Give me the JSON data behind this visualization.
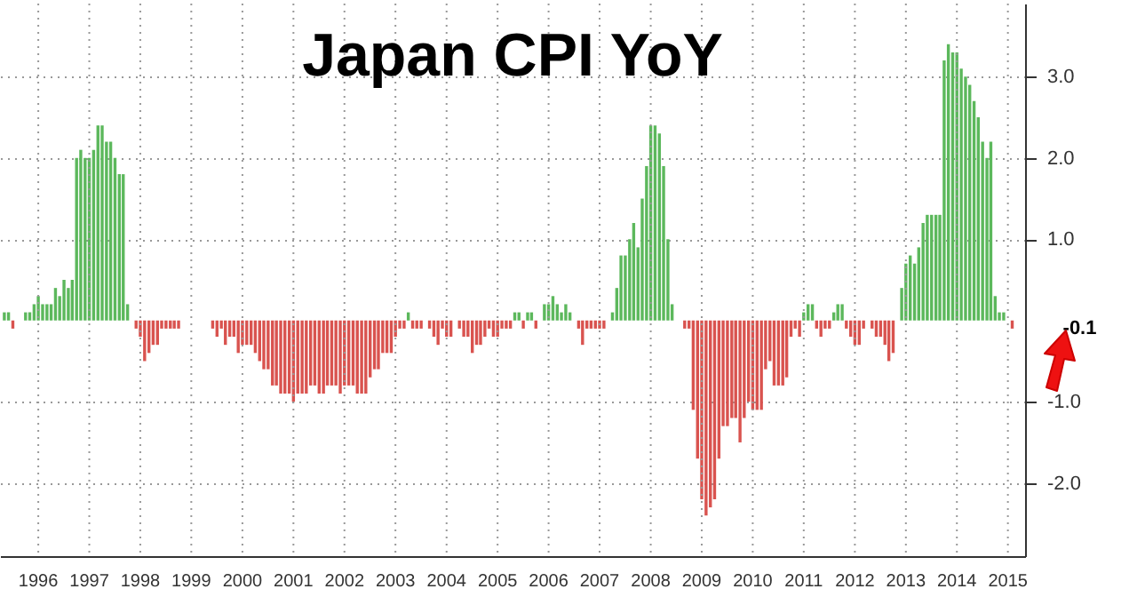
{
  "chart_data": {
    "type": "bar",
    "title": "Japan CPI YoY",
    "x": [
      "1995-11",
      "1995-12",
      "1996-01",
      "1996-02",
      "1996-03",
      "1996-04",
      "1996-05",
      "1996-06",
      "1996-07",
      "1996-08",
      "1996-09",
      "1996-10",
      "1996-11",
      "1996-12",
      "1997-01",
      "1997-02",
      "1997-03",
      "1997-04",
      "1997-05",
      "1997-06",
      "1997-07",
      "1997-08",
      "1997-09",
      "1997-10",
      "1997-11",
      "1997-12",
      "1998-01",
      "1998-02",
      "1998-03",
      "1998-04",
      "1998-05",
      "1998-06",
      "1998-07",
      "1998-08",
      "1998-09",
      "1998-10",
      "1998-11",
      "1998-12",
      "1999-01",
      "1999-02",
      "1999-03",
      "1999-04",
      "1999-05",
      "1999-06",
      "1999-07",
      "1999-08",
      "1999-09",
      "1999-10",
      "1999-11",
      "1999-12",
      "2000-01",
      "2000-02",
      "2000-03",
      "2000-04",
      "2000-05",
      "2000-06",
      "2000-07",
      "2000-08",
      "2000-09",
      "2000-10",
      "2000-11",
      "2000-12",
      "2001-01",
      "2001-02",
      "2001-03",
      "2001-04",
      "2001-05",
      "2001-06",
      "2001-07",
      "2001-08",
      "2001-09",
      "2001-10",
      "2001-11",
      "2001-12",
      "2002-01",
      "2002-02",
      "2002-03",
      "2002-04",
      "2002-05",
      "2002-06",
      "2002-07",
      "2002-08",
      "2002-09",
      "2002-10",
      "2002-11",
      "2002-12",
      "2003-01",
      "2003-02",
      "2003-03",
      "2003-04",
      "2003-05",
      "2003-06",
      "2003-07",
      "2003-08",
      "2003-09",
      "2003-10",
      "2003-11",
      "2003-12",
      "2004-01",
      "2004-02",
      "2004-03",
      "2004-04",
      "2004-05",
      "2004-06",
      "2004-07",
      "2004-08",
      "2004-09",
      "2004-10",
      "2004-11",
      "2004-12",
      "2005-01",
      "2005-02",
      "2005-03",
      "2005-04",
      "2005-05",
      "2005-06",
      "2005-07",
      "2005-08",
      "2005-09",
      "2005-10",
      "2005-11",
      "2005-12",
      "2006-01",
      "2006-02",
      "2006-03",
      "2006-04",
      "2006-05",
      "2006-06",
      "2006-07",
      "2006-08",
      "2006-09",
      "2006-10",
      "2006-11",
      "2006-12",
      "2007-01",
      "2007-02",
      "2007-03",
      "2007-04",
      "2007-05",
      "2007-06",
      "2007-07",
      "2007-08",
      "2007-09",
      "2007-10",
      "2007-11",
      "2007-12",
      "2008-01",
      "2008-02",
      "2008-03",
      "2008-04",
      "2008-05",
      "2008-06",
      "2008-07",
      "2008-08",
      "2008-09",
      "2008-10",
      "2008-11",
      "2008-12",
      "2009-01",
      "2009-02",
      "2009-03",
      "2009-04",
      "2009-05",
      "2009-06",
      "2009-07",
      "2009-08",
      "2009-09",
      "2009-10",
      "2009-11",
      "2009-12",
      "2010-01",
      "2010-02",
      "2010-03",
      "2010-04",
      "2010-05",
      "2010-06",
      "2010-07",
      "2010-08",
      "2010-09",
      "2010-10",
      "2010-11",
      "2010-12",
      "2011-01",
      "2011-02",
      "2011-03",
      "2011-04",
      "2011-05",
      "2011-06",
      "2011-07",
      "2011-08",
      "2011-09",
      "2011-10",
      "2011-11",
      "2011-12",
      "2012-01",
      "2012-02",
      "2012-03",
      "2012-04",
      "2012-05",
      "2012-06",
      "2012-07",
      "2012-08",
      "2012-09",
      "2012-10",
      "2012-11",
      "2012-12",
      "2013-01",
      "2013-02",
      "2013-03",
      "2013-04",
      "2013-05",
      "2013-06",
      "2013-07",
      "2013-08",
      "2013-09",
      "2013-10",
      "2013-11",
      "2013-12",
      "2014-01",
      "2014-02",
      "2014-03",
      "2014-04",
      "2014-05",
      "2014-06",
      "2014-07",
      "2014-08",
      "2014-09",
      "2014-10",
      "2014-11",
      "2014-12",
      "2015-01",
      "2015-02",
      "2015-03",
      "2015-04",
      "2015-05",
      "2015-06",
      "2015-07",
      "2015-08"
    ],
    "values": [
      0.1,
      0.1,
      -0.1,
      0,
      0,
      0.1,
      0.1,
      0.2,
      0.3,
      0.2,
      0.2,
      0.2,
      0.4,
      0.3,
      0.5,
      0.4,
      0.5,
      2.0,
      2.1,
      2.0,
      2.0,
      2.1,
      2.4,
      2.4,
      2.2,
      2.2,
      2.0,
      1.8,
      1.8,
      0.2,
      0,
      -0.1,
      -0.2,
      -0.5,
      -0.4,
      -0.3,
      -0.3,
      -0.1,
      -0.1,
      -0.1,
      -0.1,
      -0.1,
      0,
      0,
      0,
      0,
      0,
      0,
      0,
      -0.1,
      -0.2,
      -0.1,
      -0.3,
      -0.2,
      -0.2,
      -0.4,
      -0.3,
      -0.3,
      -0.3,
      -0.4,
      -0.5,
      -0.6,
      -0.6,
      -0.8,
      -0.8,
      -0.9,
      -0.9,
      -0.9,
      -1.0,
      -0.9,
      -0.9,
      -0.9,
      -0.8,
      -0.8,
      -0.9,
      -0.9,
      -0.8,
      -0.8,
      -0.8,
      -0.9,
      -0.8,
      -0.8,
      -0.8,
      -0.9,
      -0.9,
      -0.9,
      -0.7,
      -0.6,
      -0.6,
      -0.4,
      -0.4,
      -0.4,
      -0.2,
      -0.1,
      -0.1,
      0.1,
      -0.1,
      -0.1,
      -0.1,
      0,
      -0.1,
      -0.2,
      -0.3,
      -0.1,
      -0.2,
      -0.2,
      0,
      -0.1,
      -0.2,
      -0.2,
      -0.4,
      -0.3,
      -0.3,
      -0.2,
      -0.1,
      -0.2,
      -0.2,
      -0.1,
      -0.1,
      -0.1,
      0.1,
      0.1,
      -0.1,
      0.1,
      0.1,
      -0.1,
      0,
      0.2,
      0.2,
      0.3,
      0.2,
      0.1,
      0.2,
      0.1,
      0,
      -0.1,
      -0.3,
      -0.1,
      -0.1,
      -0.1,
      -0.1,
      -0.1,
      0,
      0.1,
      0.4,
      0.8,
      0.8,
      1.0,
      1.2,
      0.9,
      1.5,
      1.9,
      2.4,
      2.4,
      2.3,
      1.9,
      1.0,
      0.2,
      0,
      0,
      -0.1,
      -0.1,
      -1.1,
      -1.7,
      -2.2,
      -2.4,
      -2.3,
      -2.2,
      -1.7,
      -1.3,
      -1.3,
      -1.2,
      -1.2,
      -1.5,
      -1.2,
      -1.0,
      -1.1,
      -1.1,
      -1.1,
      -0.6,
      -0.5,
      -0.8,
      -0.8,
      -0.8,
      -0.7,
      -0.2,
      -0.1,
      -0.2,
      0.1,
      0.2,
      0.2,
      -0.1,
      -0.2,
      -0.1,
      -0.1,
      0.1,
      0.2,
      0.2,
      -0.1,
      -0.2,
      -0.3,
      -0.3,
      -0.1,
      0,
      -0.1,
      -0.2,
      -0.2,
      -0.3,
      -0.5,
      -0.4,
      0,
      0.4,
      0.7,
      0.8,
      0.7,
      0.9,
      1.2,
      1.3,
      1.3,
      1.3,
      1.3,
      3.2,
      3.4,
      3.3,
      3.3,
      3.1,
      3.0,
      2.9,
      2.7,
      2.5,
      2.2,
      2.0,
      2.2,
      0.3,
      0.1,
      0.1,
      0,
      -0.1
    ],
    "colors": [
      "#5cb85c",
      "#5cb85c",
      "#d9534f",
      "#5cb85c",
      "#5cb85c",
      "#5cb85c",
      "#5cb85c",
      "#5cb85c",
      "#5cb85c",
      "#5cb85c",
      "#5cb85c",
      "#5cb85c",
      "#5cb85c",
      "#5cb85c",
      "#5cb85c",
      "#5cb85c",
      "#5cb85c",
      "#5cb85c",
      "#5cb85c",
      "#5cb85c",
      "#5cb85c",
      "#5cb85c",
      "#5cb85c",
      "#5cb85c",
      "#5cb85c",
      "#5cb85c",
      "#5cb85c",
      "#5cb85c",
      "#5cb85c",
      "#5cb85c",
      "#5cb85c",
      "#d9534f",
      "#d9534f",
      "#d9534f",
      "#d9534f",
      "#d9534f",
      "#d9534f",
      "#d9534f",
      "#d9534f",
      "#d9534f",
      "#d9534f",
      "#d9534f",
      "#5cb85c",
      "#5cb85c",
      "#5cb85c",
      "#5cb85c",
      "#5cb85c",
      "#5cb85c",
      "#5cb85c",
      "#d9534f",
      "#d9534f",
      "#d9534f",
      "#d9534f",
      "#d9534f",
      "#d9534f",
      "#d9534f",
      "#d9534f",
      "#d9534f",
      "#d9534f",
      "#d9534f",
      "#d9534f",
      "#d9534f",
      "#d9534f",
      "#d9534f",
      "#d9534f",
      "#d9534f",
      "#d9534f",
      "#d9534f",
      "#d9534f",
      "#d9534f",
      "#d9534f",
      "#d9534f",
      "#d9534f",
      "#d9534f",
      "#d9534f",
      "#d9534f",
      "#d9534f",
      "#d9534f",
      "#d9534f",
      "#d9534f",
      "#d9534f",
      "#d9534f",
      "#d9534f",
      "#d9534f",
      "#d9534f",
      "#d9534f",
      "#d9534f",
      "#d9534f",
      "#d9534f",
      "#d9534f",
      "#d9534f",
      "#d9534f",
      "#d9534f",
      "#d9534f",
      "#d9534f",
      "#5cb85c",
      "#d9534f",
      "#d9534f",
      "#d9534f",
      "#5cb85c",
      "#d9534f",
      "#d9534f",
      "#d9534f",
      "#d9534f",
      "#d9534f",
      "#d9534f",
      "#5cb85c",
      "#d9534f",
      "#d9534f",
      "#d9534f",
      "#d9534f",
      "#d9534f",
      "#d9534f",
      "#d9534f",
      "#d9534f",
      "#d9534f",
      "#d9534f",
      "#d9534f",
      "#d9534f",
      "#d9534f",
      "#5cb85c",
      "#5cb85c",
      "#d9534f",
      "#5cb85c",
      "#5cb85c",
      "#d9534f",
      "#5cb85c",
      "#5cb85c",
      "#5cb85c",
      "#5cb85c",
      "#5cb85c",
      "#5cb85c",
      "#5cb85c",
      "#5cb85c",
      "#5cb85c",
      "#d9534f",
      "#d9534f",
      "#d9534f",
      "#d9534f",
      "#d9534f",
      "#d9534f",
      "#d9534f",
      "#5cb85c",
      "#5cb85c",
      "#5cb85c",
      "#5cb85c",
      "#5cb85c",
      "#5cb85c",
      "#5cb85c",
      "#5cb85c",
      "#5cb85c",
      "#5cb85c",
      "#5cb85c",
      "#5cb85c",
      "#5cb85c",
      "#5cb85c",
      "#5cb85c",
      "#5cb85c",
      "#5cb85c",
      "#5cb85c",
      "#d9534f",
      "#d9534f",
      "#d9534f",
      "#d9534f",
      "#d9534f",
      "#d9534f",
      "#d9534f",
      "#d9534f",
      "#d9534f",
      "#d9534f",
      "#d9534f",
      "#d9534f",
      "#d9534f",
      "#d9534f",
      "#d9534f",
      "#d9534f",
      "#d9534f",
      "#d9534f",
      "#d9534f",
      "#d9534f",
      "#d9534f",
      "#d9534f",
      "#d9534f",
      "#d9534f",
      "#d9534f",
      "#d9534f",
      "#d9534f",
      "#d9534f",
      "#5cb85c",
      "#5cb85c",
      "#5cb85c",
      "#d9534f",
      "#d9534f",
      "#d9534f",
      "#d9534f",
      "#5cb85c",
      "#5cb85c",
      "#5cb85c",
      "#d9534f",
      "#d9534f",
      "#d9534f",
      "#d9534f",
      "#d9534f",
      "#5cb85c",
      "#d9534f",
      "#d9534f",
      "#d9534f",
      "#d9534f",
      "#d9534f",
      "#d9534f",
      "#5cb85c",
      "#5cb85c",
      "#5cb85c",
      "#5cb85c",
      "#5cb85c",
      "#5cb85c",
      "#5cb85c",
      "#5cb85c",
      "#5cb85c",
      "#5cb85c",
      "#5cb85c",
      "#5cb85c",
      "#5cb85c",
      "#5cb85c",
      "#5cb85c",
      "#5cb85c",
      "#5cb85c",
      "#5cb85c",
      "#5cb85c",
      "#5cb85c",
      "#5cb85c",
      "#5cb85c",
      "#5cb85c",
      "#5cb85c",
      "#5cb85c",
      "#5cb85c",
      "#5cb85c",
      "#d9534f"
    ],
    "xlim": [
      "1995-10",
      "2015-11"
    ],
    "xticks": [
      {
        "value": "1996-07",
        "label": "1996"
      },
      {
        "value": "1997-07",
        "label": "1997"
      },
      {
        "value": "1998-07",
        "label": "1998"
      },
      {
        "value": "1999-07",
        "label": "1999"
      },
      {
        "value": "2000-07",
        "label": "2000"
      },
      {
        "value": "2001-07",
        "label": "2001"
      },
      {
        "value": "2002-07",
        "label": "2002"
      },
      {
        "value": "2003-07",
        "label": "2003"
      },
      {
        "value": "2004-07",
        "label": "2004"
      },
      {
        "value": "2005-07",
        "label": "2005"
      },
      {
        "value": "2006-07",
        "label": "2006"
      },
      {
        "value": "2007-07",
        "label": "2007"
      },
      {
        "value": "2008-07",
        "label": "2008"
      },
      {
        "value": "2009-07",
        "label": "2009"
      },
      {
        "value": "2010-07",
        "label": "2010"
      },
      {
        "value": "2011-07",
        "label": "2011"
      },
      {
        "value": "2012-07",
        "label": "2012"
      },
      {
        "value": "2013-07",
        "label": "2013"
      },
      {
        "value": "2014-07",
        "label": "2014"
      },
      {
        "value": "2015-07",
        "label": "2015"
      }
    ],
    "ylim": [
      -2.9,
      3.9
    ],
    "yticks": [
      {
        "value": 3,
        "label": "3.0"
      },
      {
        "value": 2,
        "label": "2.0"
      },
      {
        "value": 1,
        "label": "1.0"
      },
      {
        "value": -1,
        "label": "-1.0"
      },
      {
        "value": -2,
        "label": "-2.0"
      }
    ],
    "grid": true,
    "annotations": [
      {
        "text": "-0.1",
        "x": "2015-08",
        "y": -0.1
      }
    ]
  }
}
